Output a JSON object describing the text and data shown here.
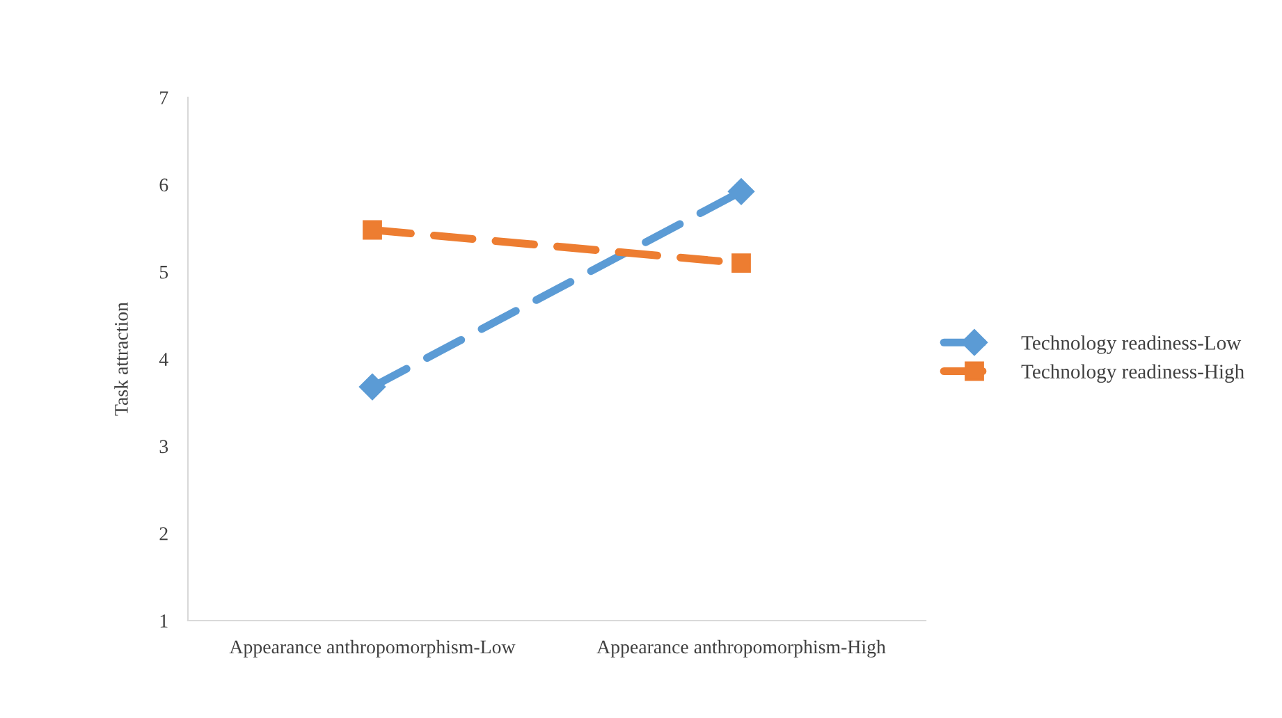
{
  "chart_data": {
    "type": "line",
    "ylabel": "Task attraction",
    "categories": [
      "Appearance anthropomorphism-Low",
      "Appearance anthropomorphism-High"
    ],
    "series": [
      {
        "name": "Technology readiness-Low",
        "color": "#5b9bd5",
        "values": [
          3.68,
          5.92
        ],
        "marker": "diamond"
      },
      {
        "name": "Technology readiness-High",
        "color": "#ed7d31",
        "values": [
          5.48,
          5.1
        ],
        "marker": "square"
      }
    ],
    "ylim": [
      1,
      7
    ],
    "yticks": [
      1,
      2,
      3,
      4,
      5,
      6,
      7
    ],
    "grid": false,
    "legend": "right",
    "line_style": "dashed"
  }
}
